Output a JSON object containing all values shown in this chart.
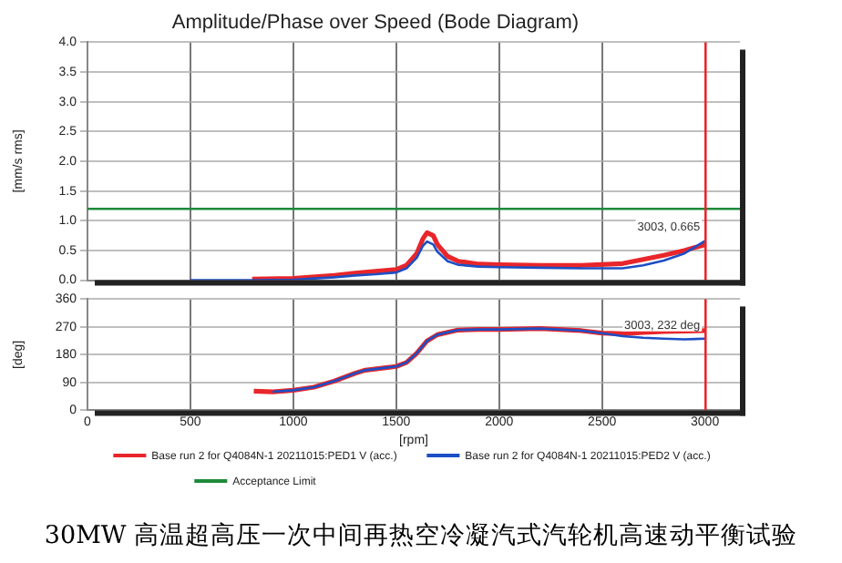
{
  "chart_data": [
    {
      "type": "line",
      "title": "Amplitude/Phase over Speed (Bode Diagram)",
      "ylabel": "[mm/s rms]",
      "xlim": [
        0,
        3170
      ],
      "xticks": [
        0,
        500,
        1000,
        1500,
        2000,
        2500,
        3000
      ],
      "ylim": [
        0,
        4
      ],
      "yticks": [
        {
          "value": 0,
          "label": "0.0"
        },
        0.5,
        {
          "value": 1,
          "label": "1.0"
        },
        1.5,
        {
          "value": 2,
          "label": "2.0"
        },
        2.5,
        {
          "value": 3,
          "label": "3.0"
        },
        3.5,
        {
          "value": 4,
          "label": "4.0"
        }
      ],
      "tick_labels": "y",
      "grid": true,
      "legend": "bottom",
      "marker": "none",
      "line_style": "solid",
      "series": [
        {
          "color": "#e8262b",
          "x": [
            800,
            1000,
            1200,
            1300,
            1400,
            1500,
            1550,
            1600,
            1630,
            1650,
            1680,
            1700,
            1750,
            1800,
            1900,
            2000,
            2200,
            2400,
            2600,
            2700,
            2800,
            2900,
            3003
          ],
          "values": [
            0.02,
            0.03,
            0.08,
            0.12,
            0.15,
            0.18,
            0.25,
            0.45,
            0.7,
            0.8,
            0.75,
            0.6,
            0.4,
            0.32,
            0.27,
            0.26,
            0.25,
            0.25,
            0.28,
            0.35,
            0.42,
            0.5,
            0.6
          ]
        },
        {
          "color": "#1c4fc4",
          "x": [
            500,
            800,
            1000,
            1200,
            1300,
            1400,
            1500,
            1550,
            1600,
            1630,
            1650,
            1680,
            1700,
            1750,
            1800,
            1900,
            2000,
            2200,
            2400,
            2600,
            2700,
            2800,
            2900,
            3003
          ],
          "values": [
            0,
            0,
            0.01,
            0.05,
            0.08,
            0.1,
            0.13,
            0.2,
            0.38,
            0.58,
            0.65,
            0.6,
            0.48,
            0.32,
            0.26,
            0.23,
            0.22,
            0.21,
            0.2,
            0.2,
            0.25,
            0.33,
            0.45,
            0.665
          ]
        }
      ],
      "ref_lines": [
        {
          "axis": "y",
          "value": 1.2,
          "label": "Acceptance Limit",
          "color": "#1e8a3a"
        },
        {
          "axis": "x",
          "value": 3003,
          "color": "#e8262b"
        }
      ],
      "annotations": [
        {
          "text": "3003, 0.665",
          "x": 3003,
          "y": 0.665
        }
      ]
    },
    {
      "type": "line",
      "xlabel": "[rpm]",
      "ylabel": "[deg]",
      "xlim": [
        0,
        3170
      ],
      "xticks": [
        0,
        500,
        1000,
        1500,
        2000,
        2500,
        3000
      ],
      "ylim": [
        0,
        360
      ],
      "yticks": [
        0,
        90,
        180,
        270,
        360
      ],
      "grid": true,
      "legend": "bottom",
      "marker": "none",
      "line_style": "solid",
      "series": [
        {
          "name": "Base run 2 for Q4084N-1 20211015:PED1 V (acc.)",
          "color": "#e8262b",
          "x": [
            808,
            900,
            1000,
            1100,
            1200,
            1300,
            1350,
            1450,
            1500,
            1550,
            1600,
            1650,
            1700,
            1800,
            1900,
            2000,
            2200,
            2400,
            2500,
            2600,
            2700,
            2800,
            3003
          ],
          "values": [
            62,
            60,
            65,
            75,
            95,
            120,
            130,
            138,
            142,
            155,
            185,
            225,
            245,
            260,
            262,
            262,
            265,
            258,
            250,
            248,
            252,
            255,
            258
          ]
        },
        {
          "name": "Base run 2 for Q4084N-1 20211015:PED2 V (acc.)",
          "color": "#1c4fc4",
          "x": [
            900,
            1000,
            1100,
            1200,
            1300,
            1350,
            1450,
            1500,
            1550,
            1600,
            1650,
            1700,
            1800,
            1900,
            2000,
            2200,
            2400,
            2500,
            2600,
            2700,
            2800,
            2900,
            3003
          ],
          "values": [
            60,
            65,
            75,
            95,
            120,
            130,
            138,
            142,
            155,
            185,
            225,
            245,
            260,
            262,
            262,
            265,
            258,
            250,
            240,
            235,
            232,
            230,
            232
          ]
        }
      ],
      "ref_lines": [
        {
          "axis": "x",
          "value": 3003,
          "color": "#e8262b"
        }
      ],
      "annotations": [
        {
          "text": "3003, 232 deg",
          "x": 3003,
          "y": 232
        },
        "30MW 高温超高压一次中间再热空冷凝汽式汽轮机高速动平衡试验"
      ]
    }
  ]
}
